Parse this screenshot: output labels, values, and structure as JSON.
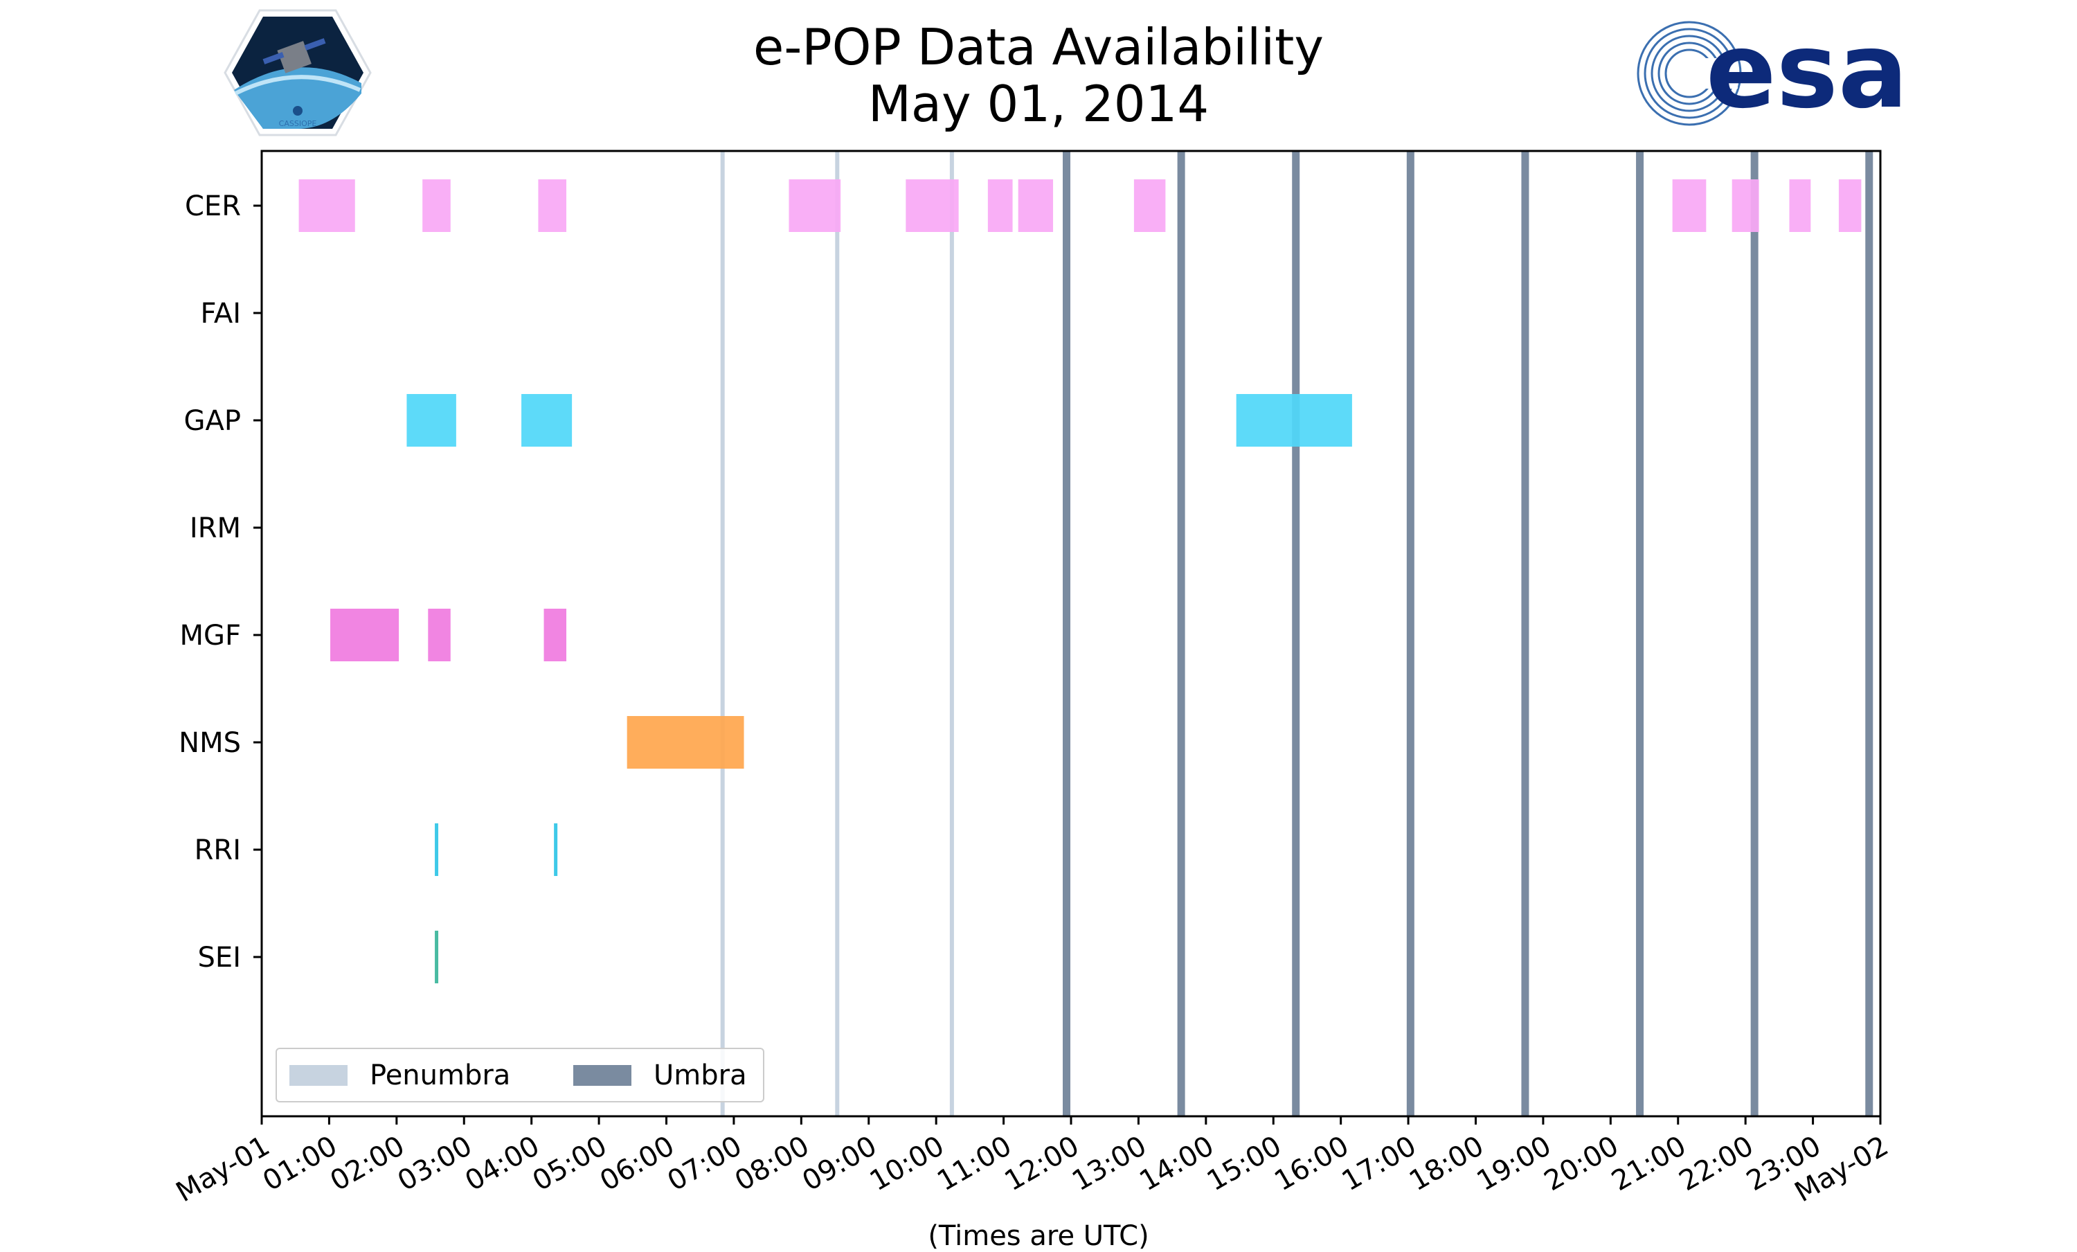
{
  "header": {
    "title_line1": "e-POP Data Availability",
    "title_line2": "May 01, 2014",
    "left_logo_text": "CASSIOPE",
    "right_logo_text": "esa"
  },
  "colors": {
    "CER": "#f9a8f5",
    "GAP": "#4fd7f9",
    "MGF": "#f07be0",
    "NMS": "#ffa64d",
    "RRI": "#2ec4e6",
    "SEI": "#3ab59a",
    "penumbra": "#c7d3e0",
    "umbra": "#7a8ba0"
  },
  "chart_data": {
    "type": "bar",
    "title": "e-POP Data Availability",
    "subtitle": "May 01, 2014",
    "xlabel": "(Times are UTC)",
    "ylabel": "",
    "xlim": [
      "2014-05-01 00:00",
      "2014-05-02 00:00"
    ],
    "categories": [
      "CER",
      "FAI",
      "GAP",
      "IRM",
      "MGF",
      "NMS",
      "RRI",
      "SEI"
    ],
    "x_tick_labels": [
      "May-01",
      "01:00",
      "02:00",
      "03:00",
      "04:00",
      "05:00",
      "06:00",
      "07:00",
      "08:00",
      "09:00",
      "10:00",
      "11:00",
      "12:00",
      "13:00",
      "14:00",
      "15:00",
      "16:00",
      "17:00",
      "18:00",
      "19:00",
      "20:00",
      "21:00",
      "22:00",
      "23:00",
      "May-02"
    ],
    "grid": false,
    "legend": {
      "placement": "lower-left",
      "entries": [
        "Penumbra",
        "Umbra"
      ]
    },
    "series": [
      {
        "instrument": "CER",
        "intervals": [
          [
            "00:33",
            "01:23"
          ],
          [
            "02:23",
            "02:48"
          ],
          [
            "04:06",
            "04:31"
          ],
          [
            "07:49",
            "08:35"
          ],
          [
            "09:33",
            "10:20"
          ],
          [
            "10:46",
            "11:08"
          ],
          [
            "11:13",
            "11:44"
          ],
          [
            "12:56",
            "13:24"
          ],
          [
            "20:55",
            "21:25"
          ],
          [
            "21:48",
            "22:12"
          ],
          [
            "22:39",
            "22:58"
          ],
          [
            "23:23",
            "23:43"
          ]
        ]
      },
      {
        "instrument": "FAI",
        "intervals": []
      },
      {
        "instrument": "GAP",
        "intervals": [
          [
            "02:09",
            "02:53"
          ],
          [
            "03:51",
            "04:36"
          ],
          [
            "14:27",
            "16:10"
          ]
        ]
      },
      {
        "instrument": "IRM",
        "intervals": []
      },
      {
        "instrument": "MGF",
        "intervals": [
          [
            "01:01",
            "02:02"
          ],
          [
            "02:28",
            "02:48"
          ],
          [
            "04:11",
            "04:31"
          ]
        ]
      },
      {
        "instrument": "NMS",
        "intervals": [
          [
            "05:25",
            "07:09"
          ]
        ]
      },
      {
        "instrument": "RRI",
        "intervals": [
          [
            "02:34",
            "02:37"
          ],
          [
            "04:20",
            "04:23"
          ]
        ]
      },
      {
        "instrument": "SEI",
        "intervals": [
          [
            "02:34",
            "02:37"
          ]
        ]
      }
    ],
    "eclipses": [
      {
        "type": "penumbra",
        "time": "06:50"
      },
      {
        "type": "penumbra",
        "time": "08:32"
      },
      {
        "type": "penumbra",
        "time": "10:14"
      },
      {
        "type": "umbra",
        "time": "11:56"
      },
      {
        "type": "umbra",
        "time": "13:38"
      },
      {
        "type": "umbra",
        "time": "15:20"
      },
      {
        "type": "umbra",
        "time": "17:02"
      },
      {
        "type": "umbra",
        "time": "18:44"
      },
      {
        "type": "umbra",
        "time": "20:26"
      },
      {
        "type": "umbra",
        "time": "22:08"
      },
      {
        "type": "umbra",
        "time": "23:50"
      }
    ]
  }
}
